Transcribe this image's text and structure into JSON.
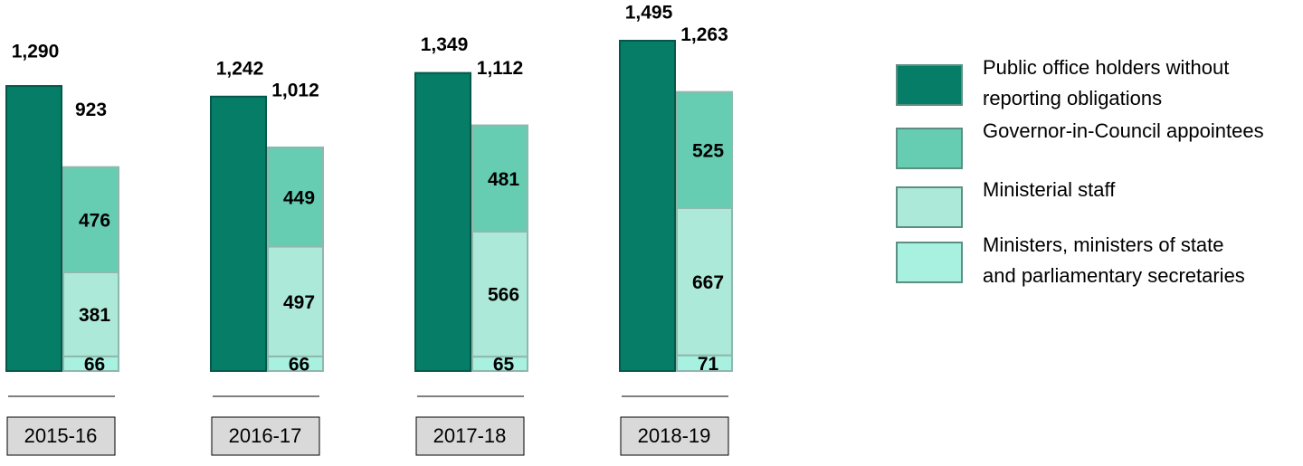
{
  "chart_data": {
    "type": "bar",
    "categories": [
      "2015-16",
      "2016-17",
      "2017-18",
      "2018-19"
    ],
    "series": [
      {
        "name": "Public office holders without reporting obligations",
        "color": "#067d66",
        "values": [
          1290,
          1242,
          1349,
          1495
        ],
        "value_labels": [
          "1,290",
          "1,242",
          "1,349",
          "1,495"
        ]
      },
      {
        "name": "Ministers, ministers of state and parliamentary secretaries",
        "color": "#a8f0e0",
        "values": [
          66,
          66,
          65,
          71
        ]
      },
      {
        "name": "Ministerial staff",
        "color": "#ade9d9",
        "values": [
          381,
          497,
          566,
          667
        ]
      },
      {
        "name": "Governor-in-Council appointees",
        "color": "#66cdb3",
        "values": [
          476,
          449,
          481,
          525
        ]
      }
    ],
    "stack_totals": [
      923,
      1012,
      1112,
      1263
    ],
    "stack_total_labels": [
      "923",
      "1,012",
      "1,112",
      "1,263"
    ],
    "legend": "right"
  }
}
